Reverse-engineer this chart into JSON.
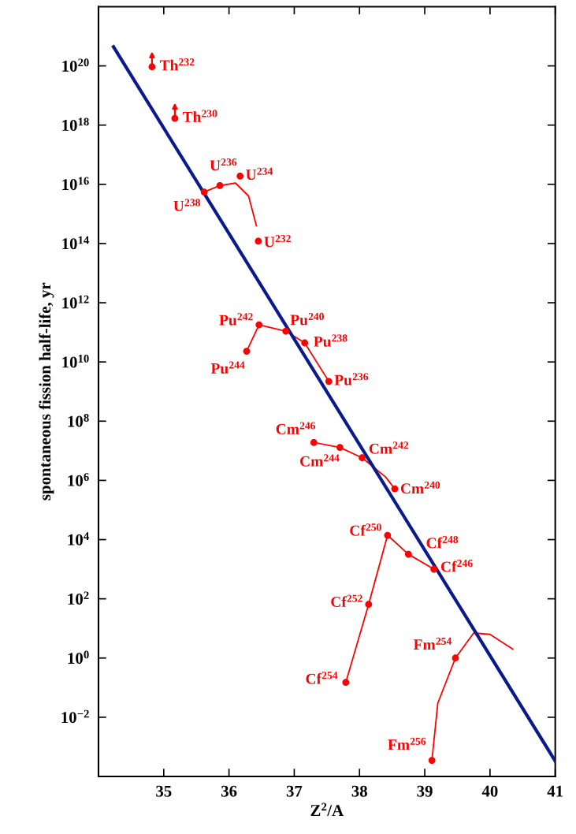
{
  "chart_data": {
    "type": "scatter",
    "xlabel": "Z$^{2}$/A",
    "ylabel": "spontaneous fission half-life, yr",
    "log": "y",
    "xlim": [
      34,
      41
    ],
    "xticks": [
      35,
      36,
      37,
      38,
      39,
      40,
      41
    ],
    "ylim": [
      0.0001,
      1e+22
    ],
    "yticks": [
      {
        "value": 0.01,
        "label": "10$^{−2}$"
      },
      {
        "value": 1,
        "label": "10$^{0}$"
      },
      {
        "value": 100.0,
        "label": "10$^{2}$"
      },
      {
        "value": 10000.0,
        "label": "10$^{4}$"
      },
      {
        "value": 1000000.0,
        "label": "10$^{6}$"
      },
      {
        "value": 100000000.0,
        "label": "10$^{8}$"
      },
      {
        "value": 10000000000.0,
        "label": "10$^{10}$"
      },
      {
        "value": 1000000000000.0,
        "label": "10$^{12}$"
      },
      {
        "value": 100000000000000.0,
        "label": "10$^{14}$"
      },
      {
        "value": 1e+16,
        "label": "10$^{16}$"
      },
      {
        "value": 1e+18,
        "label": "10$^{18}$"
      },
      {
        "value": 1e+20,
        "label": "10$^{20}$"
      }
    ],
    "grid": false,
    "legend": false,
    "series": [
      {
        "marker": "circle",
        "color": "#ff0000",
        "x": [
          34.82,
          35.17,
          35.62,
          35.86,
          36.17,
          36.45,
          36.46,
          36.87,
          37.16,
          36.27,
          37.53,
          37.3,
          37.7,
          38.04,
          38.54,
          38.43,
          38.75,
          39.14,
          38.14,
          37.79,
          39.47,
          39.11
        ],
        "values": [
          9.3e+19,
          1.7e+18,
          5500000000000000.0,
          9100000000000000.0,
          1.9e+16,
          120000000000000.0,
          180000000000.0,
          110000000000.0,
          44000000000.0,
          23000000000.0,
          2200000000.0,
          19000000.0,
          13000000.0,
          5800000.0,
          520000.0,
          14000.0,
          3200.0,
          1000.0,
          65,
          0.15,
          1.0,
          0.00035
        ]
      },
      {
        "type": "line",
        "marker": "none",
        "line_style": "solid",
        "color": "#0a1a8c",
        "x": [
          34.23,
          41.0
        ],
        "values": [
          4.4e+20,
          0.00033
        ]
      },
      {
        "type": "line",
        "marker": "none",
        "line_style": "solid",
        "color": "#ff0000",
        "x": [
          35.62,
          35.86,
          36.1,
          36.3,
          36.42
        ],
        "values": [
          5500000000000000.0,
          9100000000000000.0,
          1.1e+16,
          4000000000000000.0,
          400000000000000.0
        ]
      },
      {
        "type": "line",
        "marker": "none",
        "line_style": "solid",
        "color": "#ff0000",
        "x": [
          36.27,
          36.46,
          36.87,
          37.16,
          37.53
        ],
        "values": [
          23000000000.0,
          180000000000.0,
          110000000000.0,
          44000000000.0,
          2200000000.0
        ]
      },
      {
        "type": "line",
        "marker": "none",
        "line_style": "solid",
        "color": "#ff0000",
        "x": [
          37.3,
          37.7,
          38.04,
          38.4,
          38.54
        ],
        "values": [
          19000000.0,
          13000000.0,
          5800000.0,
          1300000.0,
          520000.0
        ]
      },
      {
        "type": "line",
        "marker": "none",
        "line_style": "solid",
        "color": "#ff0000",
        "x": [
          37.79,
          38.14,
          38.43,
          38.75,
          39.14
        ],
        "values": [
          0.15,
          65,
          14000.0,
          3200.0,
          1000.0
        ]
      },
      {
        "type": "line",
        "marker": "none",
        "line_style": "solid",
        "color": "#ff0000",
        "x": [
          39.11,
          39.2,
          39.47,
          39.75,
          40.0,
          40.35
        ],
        "values": [
          0.00035,
          0.03,
          1.0,
          7,
          6.3,
          2
        ]
      }
    ],
    "annotations": [
      {
        "text": "Th$^{232}$",
        "x": 34.82,
        "y": 9.3e+19
      },
      {
        "text": "Th$^{230}$",
        "x": 35.17,
        "y": 1.7e+18
      },
      {
        "text": "U$^{238}$",
        "x": 35.62,
        "y": 5500000000000000.0
      },
      {
        "text": "U$^{236}$",
        "x": 35.86,
        "y": 9100000000000000.0
      },
      {
        "text": "U$^{234}$",
        "x": 36.17,
        "y": 1.9e+16
      },
      {
        "text": "U$^{232}$",
        "x": 36.45,
        "y": 120000000000000.0
      },
      {
        "text": "Pu$^{242}$",
        "x": 36.46,
        "y": 180000000000.0
      },
      {
        "text": "Pu$^{240}$",
        "x": 36.87,
        "y": 110000000000.0
      },
      {
        "text": "Pu$^{238}$",
        "x": 37.16,
        "y": 44000000000.0
      },
      {
        "text": "Pu$^{244}$",
        "x": 36.27,
        "y": 23000000000.0
      },
      {
        "text": "Pu$^{236}$",
        "x": 37.53,
        "y": 2200000000.0
      },
      {
        "text": "Cm$^{246}$",
        "x": 37.3,
        "y": 19000000.0
      },
      {
        "text": "Cm$^{244}$",
        "x": 37.7,
        "y": 13000000.0
      },
      {
        "text": "Cm$^{242}$",
        "x": 38.04,
        "y": 5800000.0
      },
      {
        "text": "Cm$^{240}$",
        "x": 38.54,
        "y": 520000.0
      },
      {
        "text": "Cf$^{250}$",
        "x": 38.43,
        "y": 14000.0
      },
      {
        "text": "Cf$^{248}$",
        "x": 38.75,
        "y": 3200.0
      },
      {
        "text": "Cf$^{246}$",
        "x": 39.14,
        "y": 1000.0
      },
      {
        "text": "Cf$^{252}$",
        "x": 38.14,
        "y": 65
      },
      {
        "text": "Cf$^{254}$",
        "x": 37.79,
        "y": 0.15
      },
      {
        "text": "Fm$^{254}$",
        "x": 39.47,
        "y": 1.0
      },
      {
        "text": "Fm$^{256}$",
        "x": 39.11,
        "y": 0.00035
      }
    ]
  }
}
